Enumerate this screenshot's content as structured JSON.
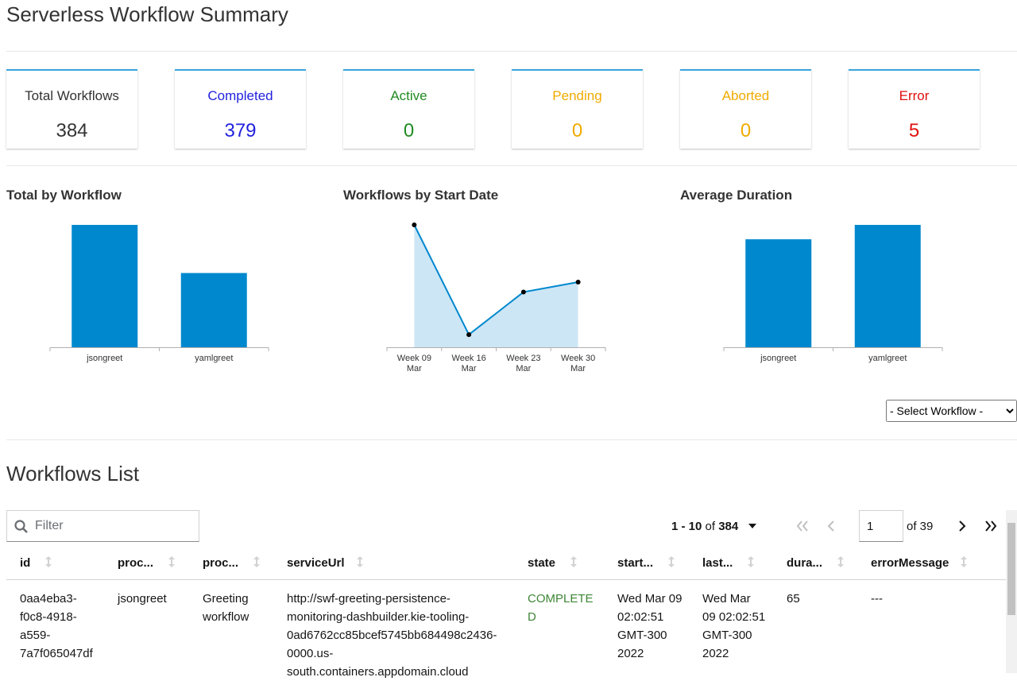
{
  "header": {
    "title": "Serverless Workflow Summary"
  },
  "cards": [
    {
      "label": "Total Workflows",
      "value": 384,
      "color": "#333333"
    },
    {
      "label": "Completed",
      "value": 379,
      "color": "#2222dd"
    },
    {
      "label": "Active",
      "value": 0,
      "color": "#228b22"
    },
    {
      "label": "Pending",
      "value": 0,
      "color": "#f0ab00"
    },
    {
      "label": "Aborted",
      "value": 0,
      "color": "#f0ab00"
    },
    {
      "label": "Error",
      "value": 5,
      "color": "#e01010"
    }
  ],
  "chart_data": [
    {
      "type": "bar",
      "title": "Total by Workflow",
      "categories": [
        "jsongreet",
        "yamlgreet"
      ],
      "values": [
        239,
        145
      ],
      "color": "#0088ce"
    },
    {
      "type": "line",
      "title": "Workflows by Start Date",
      "categories": [
        "Week 09 Mar",
        "Week 16 Mar",
        "Week 23 Mar",
        "Week 30 Mar"
      ],
      "values": [
        184,
        19,
        83,
        98
      ],
      "color": "#0088ce",
      "area_color": "#cde6f5"
    },
    {
      "type": "bar",
      "title": "Average Duration",
      "categories": [
        "jsongreet",
        "yamlgreet"
      ],
      "values": [
        60,
        68
      ],
      "color": "#0088ce"
    }
  ],
  "select": {
    "placeholder": "- Select Workflow -"
  },
  "list": {
    "title": "Workflows List",
    "filter_placeholder": "Filter",
    "pagination": {
      "range": "1 - 10",
      "of": "of",
      "total": "384",
      "page": "1",
      "pages": "of 39"
    },
    "columns": [
      "id",
      "proc...",
      "proc...",
      "serviceUrl",
      "state",
      "start...",
      "last...",
      "dura...",
      "errorMessage"
    ],
    "rows": [
      [
        "0aa4eba3-f0c8-4918-a559-7a7f065047df",
        "jsongreet",
        "Greeting workflow",
        "http://swf-greeting-persistence-monitoring-dashbuilder.kie-tooling-0ad6762cc85bcef5745bb684498c2436-0000.us-south.containers.appdomain.cloud",
        "COMPLETED",
        "Wed Mar 09 02:02:51 GMT-300 2022",
        "Wed Mar 09 02:02:51 GMT-300 2022",
        "65",
        "---"
      ]
    ]
  }
}
